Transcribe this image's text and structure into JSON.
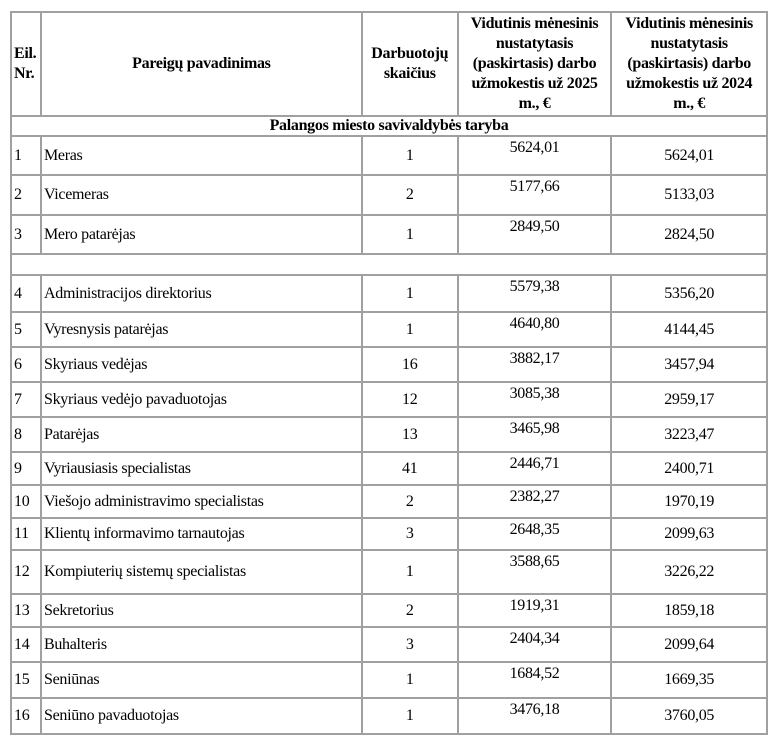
{
  "headers": {
    "nr": "Eil. Nr.",
    "title": "Pareigų pavadinimas",
    "count": "Darbuotojų skaičius",
    "y2025": "Vidutinis mėnesinis nustatytasis (paskirtasis) darbo užmokestis už 2025 m., €",
    "y2024": "Vidutinis mėnesinis nustatytasis (paskirtasis) darbo užmokestis už 2024 m., €"
  },
  "section_title": "Palangos miesto savivaldybės taryba",
  "rows": [
    {
      "nr": "1",
      "title": "Meras",
      "count": "1",
      "y2025": "5624,01",
      "y2024": "5624,01"
    },
    {
      "nr": "2",
      "title": "Vicemeras",
      "count": "2",
      "y2025": "5177,66",
      "y2024": "5133,03"
    },
    {
      "nr": "3",
      "title": "Mero patarėjas",
      "count": "1",
      "y2025": "2849,50",
      "y2024": "2824,50"
    },
    {
      "nr": "4",
      "title": "Administracijos direktorius",
      "count": "1",
      "y2025": "5579,38",
      "y2024": "5356,20"
    },
    {
      "nr": "5",
      "title": "Vyresnysis patarėjas",
      "count": "1",
      "y2025": "4640,80",
      "y2024": "4144,45"
    },
    {
      "nr": "6",
      "title": "Skyriaus vedėjas",
      "count": "16",
      "y2025": "3882,17",
      "y2024": "3457,94"
    },
    {
      "nr": "7",
      "title": "Skyriaus vedėjo pavaduotojas",
      "count": "12",
      "y2025": "3085,38",
      "y2024": "2959,17"
    },
    {
      "nr": "8",
      "title": "Patarėjas",
      "count": "13",
      "y2025": "3465,98",
      "y2024": "3223,47"
    },
    {
      "nr": "9",
      "title": "Vyriausiasis specialistas",
      "count": "41",
      "y2025": "2446,71",
      "y2024": "2400,71"
    },
    {
      "nr": "10",
      "title": "Viešojo administravimo specialistas",
      "count": "2",
      "y2025": "2382,27",
      "y2024": "1970,19"
    },
    {
      "nr": "11",
      "title": "Klientų informavimo tarnautojas",
      "count": "3",
      "y2025": "2648,35",
      "y2024": "2099,63"
    },
    {
      "nr": "12",
      "title": "Kompiuterių sistemų specialistas",
      "count": "1",
      "y2025": "3588,65",
      "y2024": "3226,22"
    },
    {
      "nr": "13",
      "title": "Sekretorius",
      "count": "2",
      "y2025": "1919,31",
      "y2024": "1859,18"
    },
    {
      "nr": "14",
      "title": "Buhalteris",
      "count": "3",
      "y2025": "2404,34",
      "y2024": "2099,64"
    },
    {
      "nr": "15",
      "title": "Seniūnas",
      "count": "1",
      "y2025": "1684,52",
      "y2024": "1669,35"
    },
    {
      "nr": "16",
      "title": "Seniūno pavaduotojas",
      "count": "1",
      "y2025": "3476,18",
      "y2024": "3760,05"
    }
  ]
}
